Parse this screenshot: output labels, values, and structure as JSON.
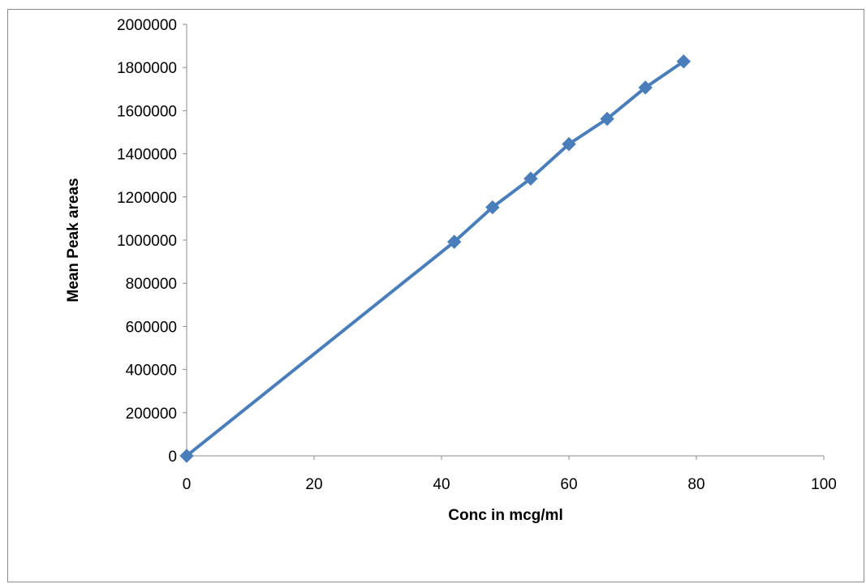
{
  "chart_data": {
    "type": "line",
    "title": "",
    "xlabel": "Conc in mcg/ml",
    "ylabel": "Mean Peak areas",
    "xlim": [
      0,
      100
    ],
    "ylim": [
      0,
      2000000
    ],
    "x_ticks": [
      0,
      20,
      40,
      60,
      80,
      100
    ],
    "y_ticks": [
      0,
      200000,
      400000,
      600000,
      800000,
      1000000,
      1200000,
      1400000,
      1600000,
      1800000,
      2000000
    ],
    "grid": false,
    "legend": "none",
    "marker": "diamond",
    "color": "#4a7ebb",
    "series": [
      {
        "x": [
          0,
          42,
          48,
          54,
          60,
          66,
          72,
          78
        ],
        "y": [
          0,
          992000,
          1152000,
          1285000,
          1445000,
          1562000,
          1707000,
          1828000
        ]
      }
    ]
  }
}
